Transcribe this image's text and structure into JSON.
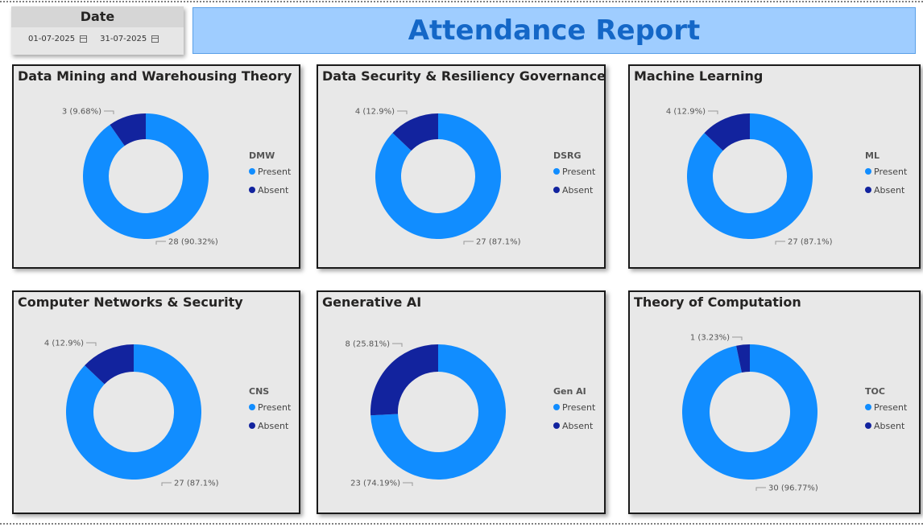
{
  "report_title": "Attendance Report",
  "date_slicer": {
    "title": "Date",
    "start": "01-07-2025",
    "end": "31-07-2025",
    "icon": "calendar-icon"
  },
  "colors": {
    "present": "#118dff",
    "absent": "#12239e"
  },
  "chart_data": [
    {
      "type": "pie",
      "title": "Data Mining and Warehousing Theory",
      "legend_title": "DMW",
      "categories": [
        "Present",
        "Absent"
      ],
      "values": [
        28,
        3
      ],
      "labels": [
        "28 (90.32%)",
        "3 (9.68%)"
      ],
      "legend": "right"
    },
    {
      "type": "pie",
      "title": "Data Security & Resiliency Governance",
      "legend_title": "DSRG",
      "categories": [
        "Present",
        "Absent"
      ],
      "values": [
        27,
        4
      ],
      "labels": [
        "27 (87.1%)",
        "4 (12.9%)"
      ],
      "legend": "right"
    },
    {
      "type": "pie",
      "title": "Machine Learning",
      "legend_title": "ML",
      "categories": [
        "Present",
        "Absent"
      ],
      "values": [
        27,
        4
      ],
      "labels": [
        "27 (87.1%)",
        "4 (12.9%)"
      ],
      "legend": "right"
    },
    {
      "type": "pie",
      "title": "Computer Networks & Security",
      "legend_title": "CNS",
      "categories": [
        "Present",
        "Absent"
      ],
      "values": [
        27,
        4
      ],
      "labels": [
        "27 (87.1%)",
        "4 (12.9%)"
      ],
      "legend": "right"
    },
    {
      "type": "pie",
      "title": "Generative AI",
      "legend_title": "Gen AI",
      "categories": [
        "Present",
        "Absent"
      ],
      "values": [
        23,
        8
      ],
      "labels": [
        "23 (74.19%)",
        "8 (25.81%)"
      ],
      "legend": "right"
    },
    {
      "type": "pie",
      "title": "Theory of Computation",
      "legend_title": "TOC",
      "categories": [
        "Present",
        "Absent"
      ],
      "values": [
        30,
        1
      ],
      "labels": [
        "30 (96.77%)",
        "1 (3.23%)"
      ],
      "legend": "right"
    }
  ]
}
